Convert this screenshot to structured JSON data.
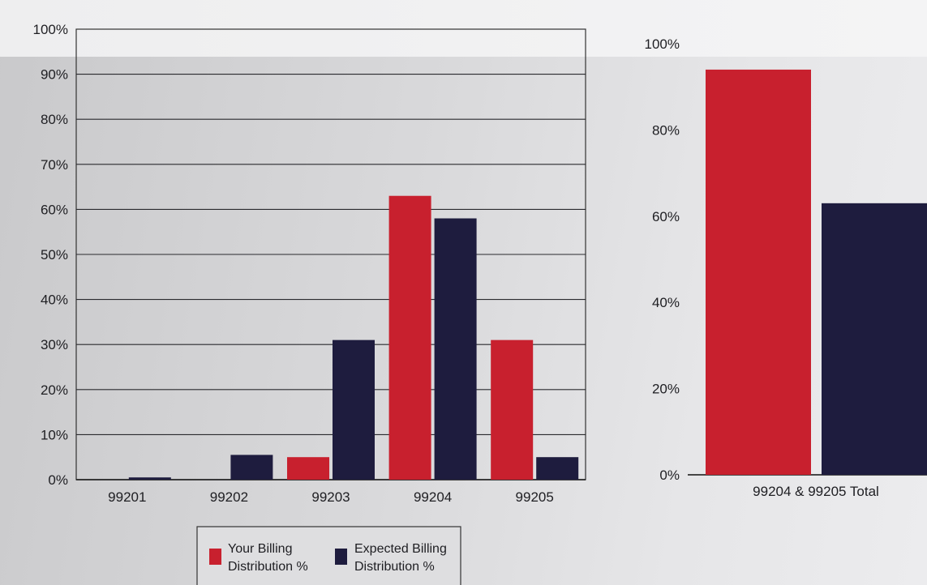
{
  "colors": {
    "your_billing": "#c8202e",
    "expected_billing": "#1e1c3e"
  },
  "chart_data": [
    {
      "type": "bar",
      "categories": [
        "99201",
        "99202",
        "99203",
        "99204",
        "99205"
      ],
      "series": [
        {
          "name": "Your Billing Distribution %",
          "values": [
            0,
            0,
            5,
            63,
            31
          ]
        },
        {
          "name": "Expected Billing Distribution %",
          "values": [
            0.5,
            5.5,
            31,
            58,
            5
          ]
        }
      ],
      "ylim": [
        0,
        100
      ],
      "yticks": [
        "0%",
        "10%",
        "20%",
        "30%",
        "40%",
        "50%",
        "60%",
        "70%",
        "80%",
        "90%",
        "100%"
      ],
      "ytick_values": [
        0,
        10,
        20,
        30,
        40,
        50,
        60,
        70,
        80,
        90,
        100
      ],
      "grid": true,
      "legend_position": "bottom-center",
      "legend": [
        {
          "line1": "Your Billing",
          "line2": "Distribution %"
        },
        {
          "line1": "Expected Billing",
          "line2": "Distribution %"
        }
      ],
      "xlabel": "",
      "ylabel": ""
    },
    {
      "type": "bar",
      "categories": [
        "99204 & 99205 Total"
      ],
      "series": [
        {
          "name": "Your Billing Distribution %",
          "values": [
            94
          ]
        },
        {
          "name": "Expected Billing Distribution %",
          "values": [
            63
          ]
        }
      ],
      "ylim": [
        0,
        100
      ],
      "yticks": [
        "0%",
        "20%",
        "40%",
        "60%",
        "80%",
        "100%"
      ],
      "ytick_values": [
        0,
        20,
        40,
        60,
        80,
        100
      ],
      "grid": false,
      "xlabel": "",
      "ylabel": ""
    }
  ]
}
